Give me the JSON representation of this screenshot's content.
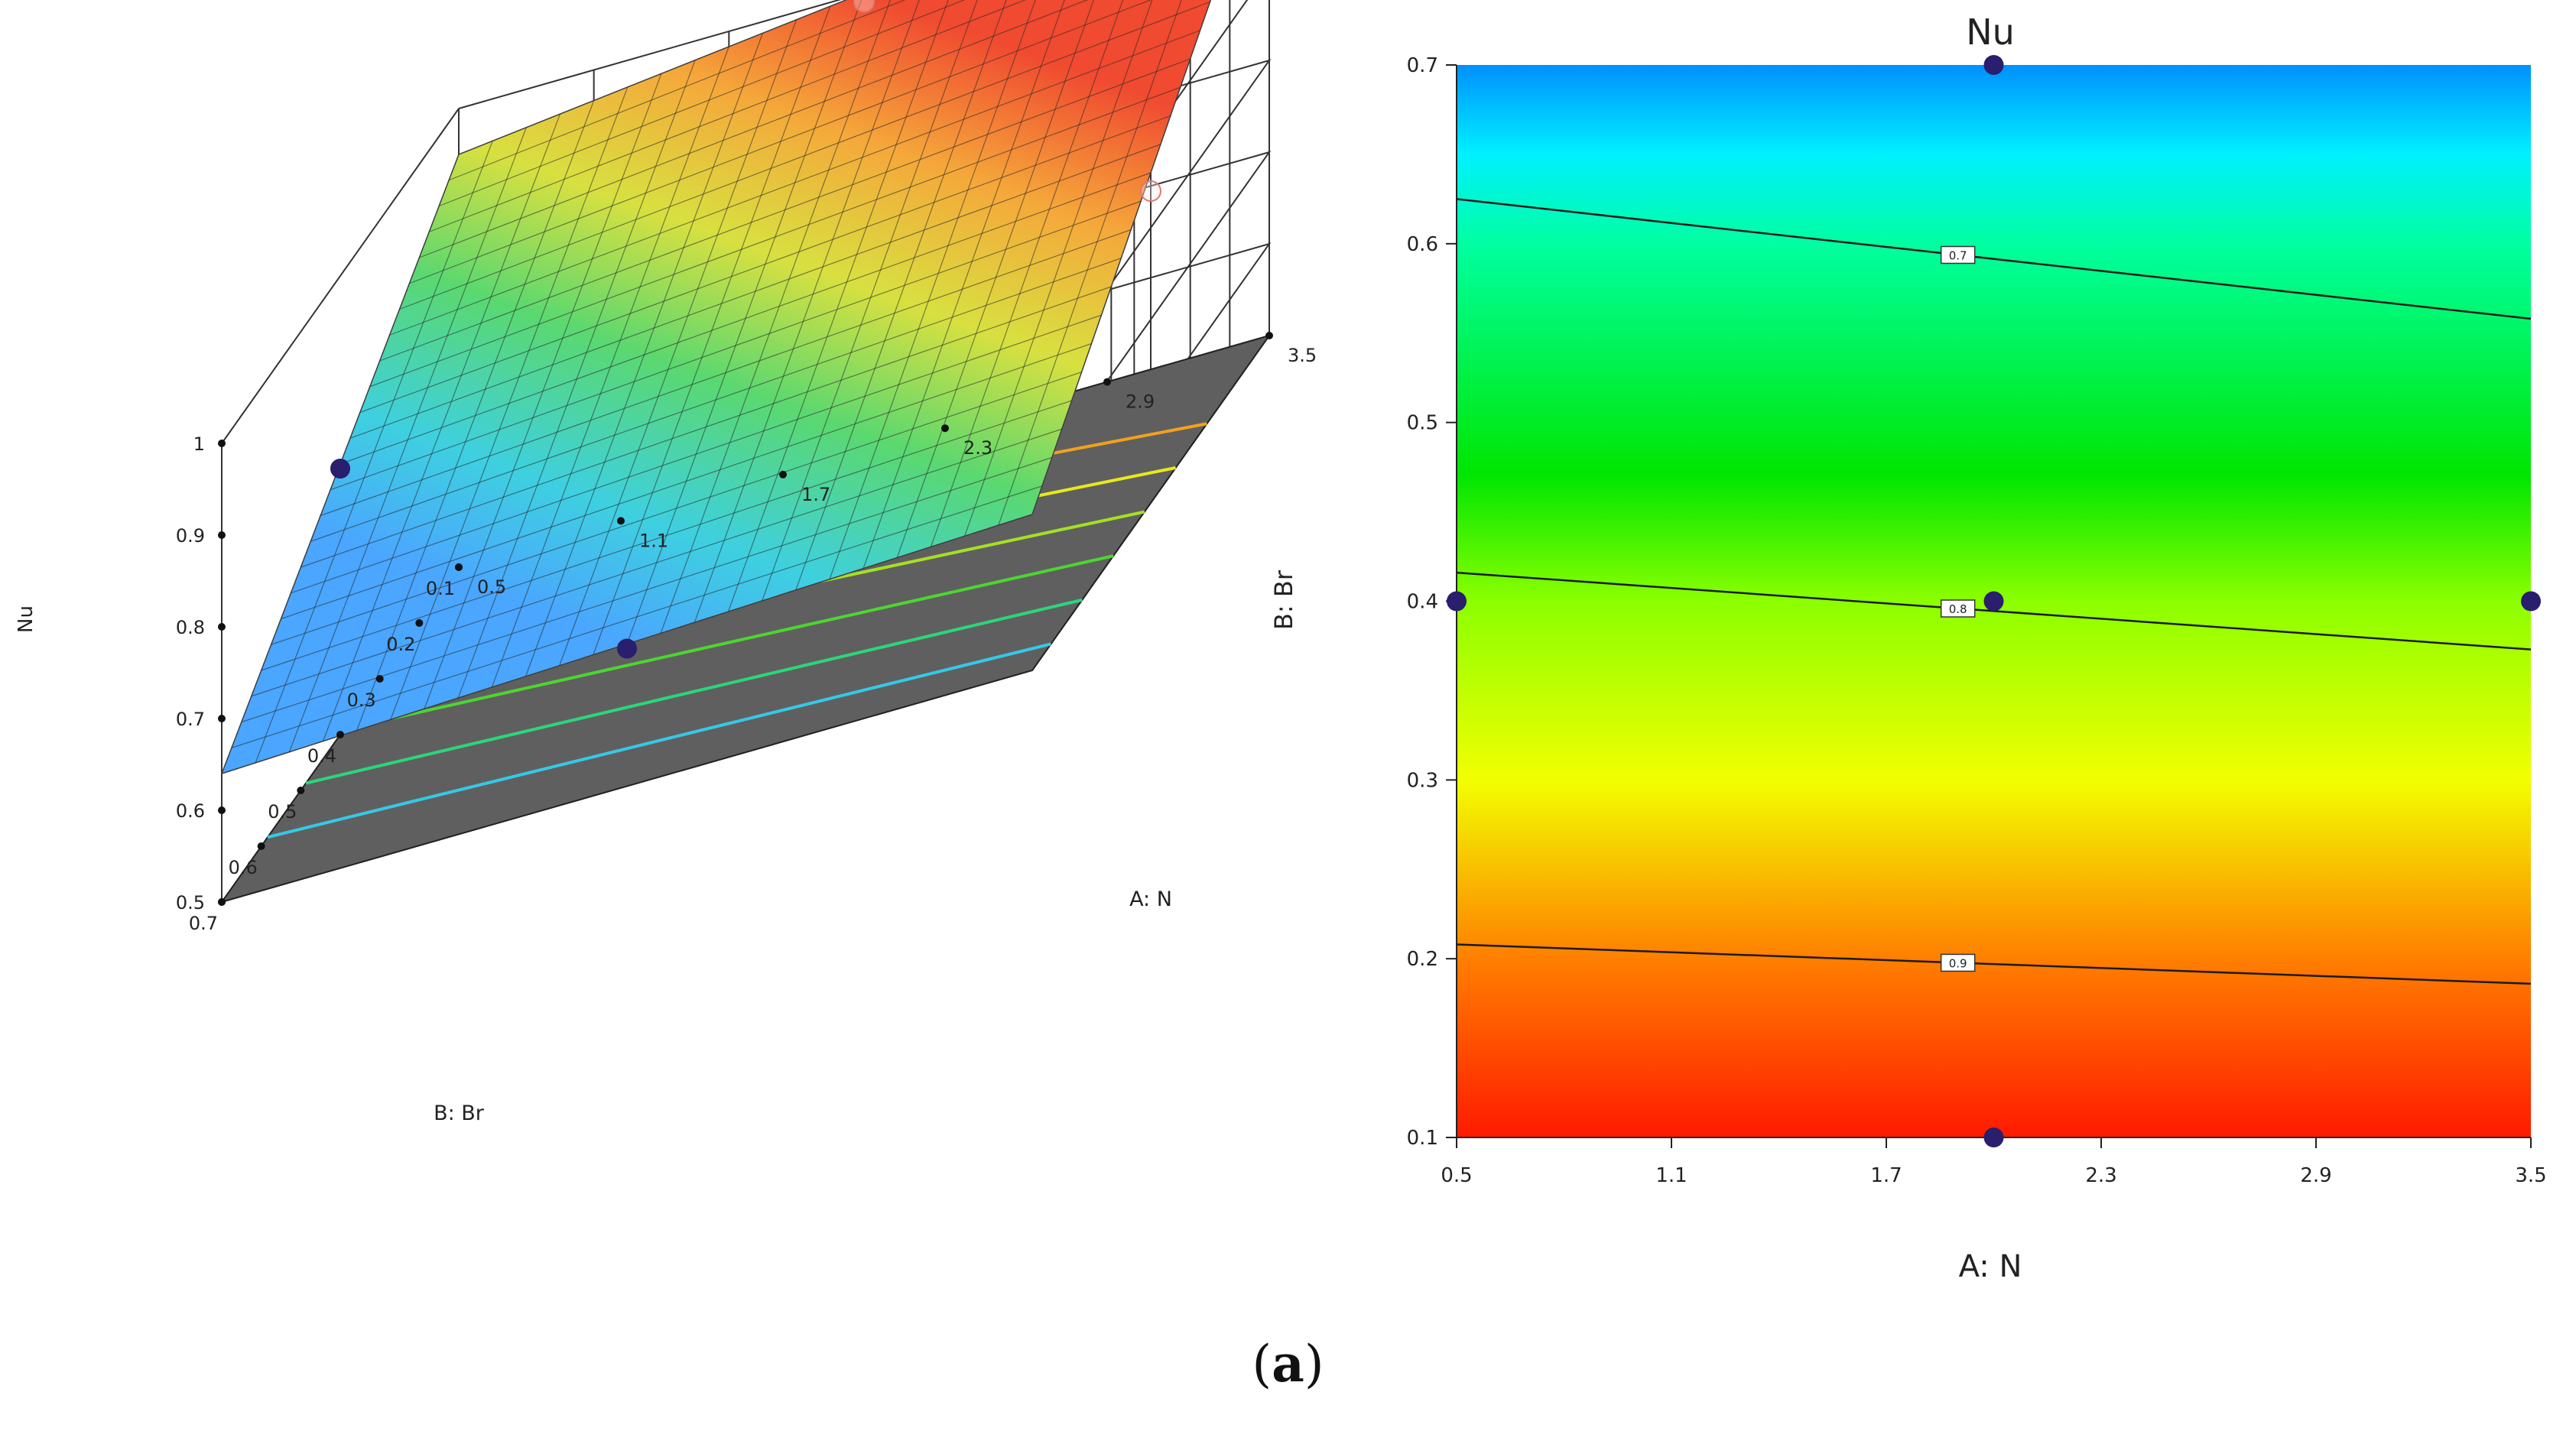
{
  "caption": {
    "open": "(",
    "letter": "a",
    "close": ")"
  },
  "colors": {
    "floor": "#5f5f5f",
    "grid": "#333333",
    "point": "#2a1e6e",
    "contour_line": "#1a1a1a"
  },
  "chart_data": [
    {
      "type": "surface3d",
      "title": "",
      "zlabel": "Nu",
      "xlabel": "A: N",
      "ylabel": "B: Br",
      "x_ticks": [
        "0.5",
        "1.1",
        "1.7",
        "2.3",
        "2.9",
        "3.5"
      ],
      "y_ticks": [
        "0.7",
        "0.6",
        "0.5",
        "0.4",
        "0.3",
        "0.2",
        "0.1"
      ],
      "z_ticks": [
        "0.5",
        "0.6",
        "0.7",
        "0.8",
        "0.9",
        "1"
      ],
      "xlim": [
        0.5,
        3.5
      ],
      "ylim": [
        0.1,
        0.7
      ],
      "zlim": [
        0.5,
        1.0
      ],
      "surface_corners": [
        {
          "N": 0.5,
          "Br": 0.7,
          "Nu": 0.64
        },
        {
          "N": 3.5,
          "Br": 0.7,
          "Nu": 0.67
        },
        {
          "N": 0.5,
          "Br": 0.1,
          "Nu": 0.95
        },
        {
          "N": 3.5,
          "Br": 0.1,
          "Nu": 1.05
        }
      ],
      "design_points": [
        {
          "N": 0.5,
          "Br": 0.4,
          "Nu": 0.79
        },
        {
          "N": 2.0,
          "Br": 0.7,
          "Nu": 0.65
        },
        {
          "N": 2.0,
          "Br": 0.1,
          "Nu": 0.99
        },
        {
          "N": 3.5,
          "Br": 0.4,
          "Nu": 0.84
        }
      ],
      "floor_contours": [
        {
          "level": 0.7,
          "color": "#35c9e6"
        },
        {
          "level": 0.75,
          "color": "#2bd67a"
        },
        {
          "level": 0.8,
          "color": "#4cd630"
        },
        {
          "level": 0.85,
          "color": "#a4e024"
        },
        {
          "level": 0.9,
          "color": "#e8e81c"
        },
        {
          "level": 0.95,
          "color": "#f0a21c"
        }
      ]
    },
    {
      "type": "contour",
      "title": "Nu",
      "xlabel": "A: N",
      "ylabel": "B: Br",
      "x_ticks": [
        "0.5",
        "1.1",
        "1.7",
        "2.3",
        "2.9",
        "3.5"
      ],
      "y_ticks": [
        "0.1",
        "0.2",
        "0.3",
        "0.4",
        "0.5",
        "0.6",
        "0.7"
      ],
      "xlim": [
        0.5,
        3.5
      ],
      "ylim": [
        0.1,
        0.7
      ],
      "color_stops": [
        {
          "Br": 0.1,
          "color": "#ff1a00"
        },
        {
          "Br": 0.2,
          "color": "#ff7f00"
        },
        {
          "Br": 0.3,
          "color": "#f2ff00"
        },
        {
          "Br": 0.4,
          "color": "#8cff00"
        },
        {
          "Br": 0.47,
          "color": "#00e600"
        },
        {
          "Br": 0.6,
          "color": "#00ffa0"
        },
        {
          "Br": 0.65,
          "color": "#00f0ff"
        },
        {
          "Br": 0.7,
          "color": "#0090ff"
        }
      ],
      "contour_lines": [
        {
          "label": "0.7",
          "Br_at_N_min": 0.625,
          "Br_at_N_max": 0.558
        },
        {
          "label": "0.8",
          "Br_at_N_min": 0.416,
          "Br_at_N_max": 0.373
        },
        {
          "label": "0.9",
          "Br_at_N_min": 0.208,
          "Br_at_N_max": 0.186
        }
      ],
      "design_points": [
        {
          "N": 2.0,
          "Br": 0.7
        },
        {
          "N": 0.5,
          "Br": 0.4
        },
        {
          "N": 2.0,
          "Br": 0.4
        },
        {
          "N": 3.5,
          "Br": 0.4
        },
        {
          "N": 2.0,
          "Br": 0.1
        }
      ]
    }
  ]
}
